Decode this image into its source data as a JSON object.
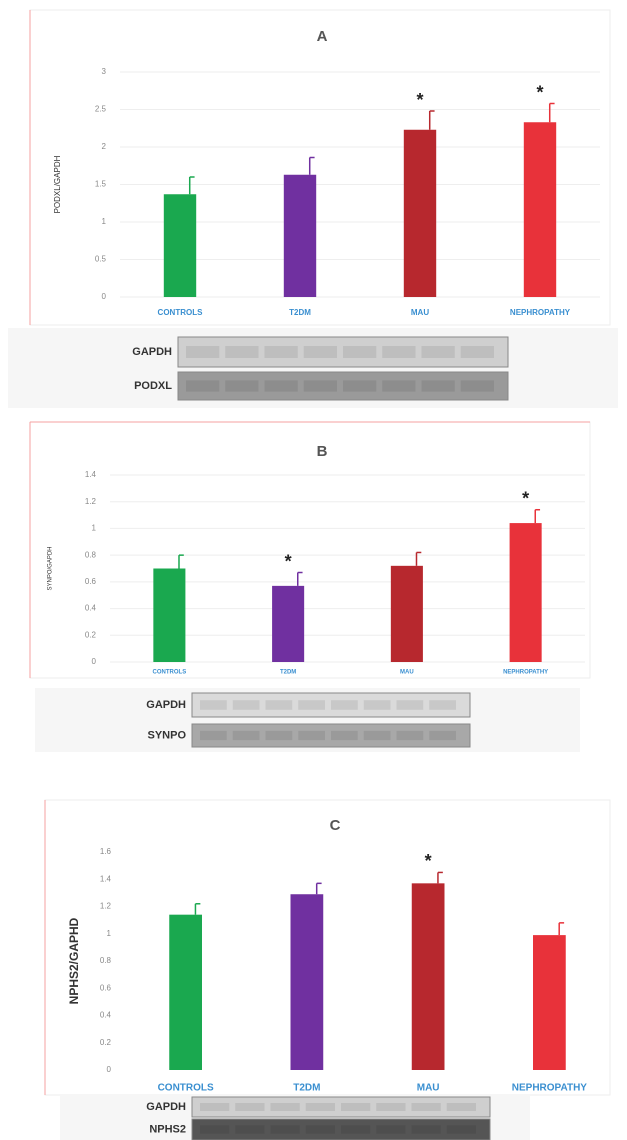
{
  "chart_data": [
    {
      "type": "bar",
      "title": "A",
      "ylabel": "PODXL/GAPDH",
      "categories": [
        "CONTROLS",
        "T2DM",
        "MAU",
        "NEPHROPATHY"
      ],
      "values": [
        1.37,
        1.63,
        2.23,
        2.33
      ],
      "errors": [
        0.23,
        0.23,
        0.25,
        0.25
      ],
      "colors": [
        "#1aa84f",
        "#7030a0",
        "#b7282e",
        "#e8323a"
      ],
      "annotations": [
        null,
        null,
        "*",
        "*"
      ],
      "ylim": [
        0,
        3
      ],
      "yticks": [
        0,
        0.5,
        1,
        1.5,
        2,
        2.5,
        3
      ],
      "grid": true,
      "blots": [
        "GAPDH",
        "PODXL"
      ]
    },
    {
      "type": "bar",
      "title": "B",
      "ylabel": "SYNPO/GAPDH",
      "categories": [
        "CONTROLS",
        "T2DM",
        "MAU",
        "NEPHROPATHY"
      ],
      "values": [
        0.7,
        0.57,
        0.72,
        1.04
      ],
      "errors": [
        0.1,
        0.1,
        0.1,
        0.1
      ],
      "colors": [
        "#1aa84f",
        "#7030a0",
        "#b7282e",
        "#e8323a"
      ],
      "annotations": [
        null,
        "*",
        null,
        "*"
      ],
      "ylim": [
        0,
        1.4
      ],
      "yticks": [
        0,
        0.2,
        0.4,
        0.6,
        0.8,
        1,
        1.2,
        1.4
      ],
      "grid": true,
      "blots": [
        "GAPDH",
        "SYNPO"
      ]
    },
    {
      "type": "bar",
      "title": "C",
      "ylabel": "NPHS2/GAPHD",
      "categories": [
        "CONTROLS",
        "T2DM",
        "MAU",
        "NEPHROPATHY"
      ],
      "values": [
        1.14,
        1.29,
        1.37,
        0.99
      ],
      "errors": [
        0.08,
        0.08,
        0.08,
        0.09
      ],
      "colors": [
        "#1aa84f",
        "#7030a0",
        "#b7282e",
        "#e8323a"
      ],
      "annotations": [
        null,
        null,
        "*",
        null
      ],
      "ylim": [
        0,
        1.6
      ],
      "yticks": [
        0,
        0.2,
        0.4,
        0.6,
        0.8,
        1,
        1.2,
        1.4,
        1.6
      ],
      "grid": false,
      "blots": [
        "GAPDH",
        "NPHS2"
      ]
    }
  ]
}
